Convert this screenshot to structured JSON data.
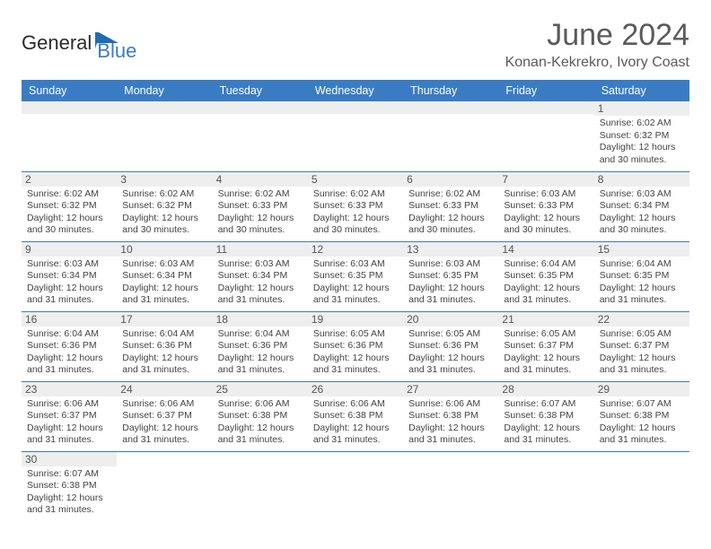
{
  "brand": {
    "part1": "General",
    "part2": "Blue"
  },
  "title": "June 2024",
  "location": "Konan-Kekrekro, Ivory Coast",
  "colors": {
    "header_bg": "#3a7cc4",
    "header_text": "#ffffff",
    "daynum_bg": "#eeeeee",
    "row_border": "#3a7cc4",
    "text": "#444444",
    "title_color": "#5a5a5a"
  },
  "daysOfWeek": [
    "Sunday",
    "Monday",
    "Tuesday",
    "Wednesday",
    "Thursday",
    "Friday",
    "Saturday"
  ],
  "weeks": [
    [
      {
        "n": "",
        "sr": "",
        "ss": "",
        "dl": ""
      },
      {
        "n": "",
        "sr": "",
        "ss": "",
        "dl": ""
      },
      {
        "n": "",
        "sr": "",
        "ss": "",
        "dl": ""
      },
      {
        "n": "",
        "sr": "",
        "ss": "",
        "dl": ""
      },
      {
        "n": "",
        "sr": "",
        "ss": "",
        "dl": ""
      },
      {
        "n": "",
        "sr": "",
        "ss": "",
        "dl": ""
      },
      {
        "n": "1",
        "sr": "Sunrise: 6:02 AM",
        "ss": "Sunset: 6:32 PM",
        "dl": "Daylight: 12 hours and 30 minutes."
      }
    ],
    [
      {
        "n": "2",
        "sr": "Sunrise: 6:02 AM",
        "ss": "Sunset: 6:32 PM",
        "dl": "Daylight: 12 hours and 30 minutes."
      },
      {
        "n": "3",
        "sr": "Sunrise: 6:02 AM",
        "ss": "Sunset: 6:32 PM",
        "dl": "Daylight: 12 hours and 30 minutes."
      },
      {
        "n": "4",
        "sr": "Sunrise: 6:02 AM",
        "ss": "Sunset: 6:33 PM",
        "dl": "Daylight: 12 hours and 30 minutes."
      },
      {
        "n": "5",
        "sr": "Sunrise: 6:02 AM",
        "ss": "Sunset: 6:33 PM",
        "dl": "Daylight: 12 hours and 30 minutes."
      },
      {
        "n": "6",
        "sr": "Sunrise: 6:02 AM",
        "ss": "Sunset: 6:33 PM",
        "dl": "Daylight: 12 hours and 30 minutes."
      },
      {
        "n": "7",
        "sr": "Sunrise: 6:03 AM",
        "ss": "Sunset: 6:33 PM",
        "dl": "Daylight: 12 hours and 30 minutes."
      },
      {
        "n": "8",
        "sr": "Sunrise: 6:03 AM",
        "ss": "Sunset: 6:34 PM",
        "dl": "Daylight: 12 hours and 30 minutes."
      }
    ],
    [
      {
        "n": "9",
        "sr": "Sunrise: 6:03 AM",
        "ss": "Sunset: 6:34 PM",
        "dl": "Daylight: 12 hours and 31 minutes."
      },
      {
        "n": "10",
        "sr": "Sunrise: 6:03 AM",
        "ss": "Sunset: 6:34 PM",
        "dl": "Daylight: 12 hours and 31 minutes."
      },
      {
        "n": "11",
        "sr": "Sunrise: 6:03 AM",
        "ss": "Sunset: 6:34 PM",
        "dl": "Daylight: 12 hours and 31 minutes."
      },
      {
        "n": "12",
        "sr": "Sunrise: 6:03 AM",
        "ss": "Sunset: 6:35 PM",
        "dl": "Daylight: 12 hours and 31 minutes."
      },
      {
        "n": "13",
        "sr": "Sunrise: 6:03 AM",
        "ss": "Sunset: 6:35 PM",
        "dl": "Daylight: 12 hours and 31 minutes."
      },
      {
        "n": "14",
        "sr": "Sunrise: 6:04 AM",
        "ss": "Sunset: 6:35 PM",
        "dl": "Daylight: 12 hours and 31 minutes."
      },
      {
        "n": "15",
        "sr": "Sunrise: 6:04 AM",
        "ss": "Sunset: 6:35 PM",
        "dl": "Daylight: 12 hours and 31 minutes."
      }
    ],
    [
      {
        "n": "16",
        "sr": "Sunrise: 6:04 AM",
        "ss": "Sunset: 6:36 PM",
        "dl": "Daylight: 12 hours and 31 minutes."
      },
      {
        "n": "17",
        "sr": "Sunrise: 6:04 AM",
        "ss": "Sunset: 6:36 PM",
        "dl": "Daylight: 12 hours and 31 minutes."
      },
      {
        "n": "18",
        "sr": "Sunrise: 6:04 AM",
        "ss": "Sunset: 6:36 PM",
        "dl": "Daylight: 12 hours and 31 minutes."
      },
      {
        "n": "19",
        "sr": "Sunrise: 6:05 AM",
        "ss": "Sunset: 6:36 PM",
        "dl": "Daylight: 12 hours and 31 minutes."
      },
      {
        "n": "20",
        "sr": "Sunrise: 6:05 AM",
        "ss": "Sunset: 6:36 PM",
        "dl": "Daylight: 12 hours and 31 minutes."
      },
      {
        "n": "21",
        "sr": "Sunrise: 6:05 AM",
        "ss": "Sunset: 6:37 PM",
        "dl": "Daylight: 12 hours and 31 minutes."
      },
      {
        "n": "22",
        "sr": "Sunrise: 6:05 AM",
        "ss": "Sunset: 6:37 PM",
        "dl": "Daylight: 12 hours and 31 minutes."
      }
    ],
    [
      {
        "n": "23",
        "sr": "Sunrise: 6:06 AM",
        "ss": "Sunset: 6:37 PM",
        "dl": "Daylight: 12 hours and 31 minutes."
      },
      {
        "n": "24",
        "sr": "Sunrise: 6:06 AM",
        "ss": "Sunset: 6:37 PM",
        "dl": "Daylight: 12 hours and 31 minutes."
      },
      {
        "n": "25",
        "sr": "Sunrise: 6:06 AM",
        "ss": "Sunset: 6:38 PM",
        "dl": "Daylight: 12 hours and 31 minutes."
      },
      {
        "n": "26",
        "sr": "Sunrise: 6:06 AM",
        "ss": "Sunset: 6:38 PM",
        "dl": "Daylight: 12 hours and 31 minutes."
      },
      {
        "n": "27",
        "sr": "Sunrise: 6:06 AM",
        "ss": "Sunset: 6:38 PM",
        "dl": "Daylight: 12 hours and 31 minutes."
      },
      {
        "n": "28",
        "sr": "Sunrise: 6:07 AM",
        "ss": "Sunset: 6:38 PM",
        "dl": "Daylight: 12 hours and 31 minutes."
      },
      {
        "n": "29",
        "sr": "Sunrise: 6:07 AM",
        "ss": "Sunset: 6:38 PM",
        "dl": "Daylight: 12 hours and 31 minutes."
      }
    ],
    [
      {
        "n": "30",
        "sr": "Sunrise: 6:07 AM",
        "ss": "Sunset: 6:38 PM",
        "dl": "Daylight: 12 hours and 31 minutes."
      },
      {
        "n": "",
        "sr": "",
        "ss": "",
        "dl": ""
      },
      {
        "n": "",
        "sr": "",
        "ss": "",
        "dl": ""
      },
      {
        "n": "",
        "sr": "",
        "ss": "",
        "dl": ""
      },
      {
        "n": "",
        "sr": "",
        "ss": "",
        "dl": ""
      },
      {
        "n": "",
        "sr": "",
        "ss": "",
        "dl": ""
      },
      {
        "n": "",
        "sr": "",
        "ss": "",
        "dl": ""
      }
    ]
  ]
}
